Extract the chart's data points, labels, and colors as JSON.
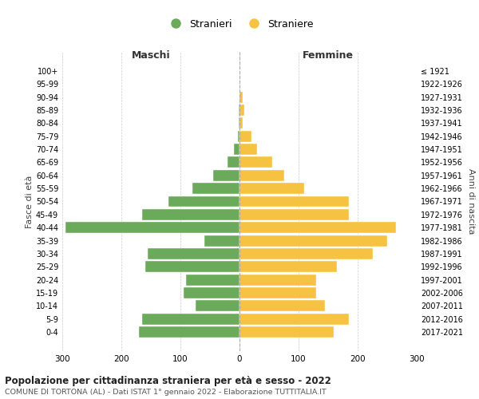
{
  "age_groups": [
    "0-4",
    "5-9",
    "10-14",
    "15-19",
    "20-24",
    "25-29",
    "30-34",
    "35-39",
    "40-44",
    "45-49",
    "50-54",
    "55-59",
    "60-64",
    "65-69",
    "70-74",
    "75-79",
    "80-84",
    "85-89",
    "90-94",
    "95-99",
    "100+"
  ],
  "birth_years": [
    "2017-2021",
    "2012-2016",
    "2007-2011",
    "2002-2006",
    "1997-2001",
    "1992-1996",
    "1987-1991",
    "1982-1986",
    "1977-1981",
    "1972-1976",
    "1967-1971",
    "1962-1966",
    "1957-1961",
    "1952-1956",
    "1947-1951",
    "1942-1946",
    "1937-1941",
    "1932-1936",
    "1927-1931",
    "1922-1926",
    "≤ 1921"
  ],
  "maschi": [
    170,
    165,
    75,
    95,
    90,
    160,
    155,
    60,
    295,
    165,
    120,
    80,
    45,
    20,
    10,
    3,
    2,
    2,
    0,
    0,
    0
  ],
  "femmine": [
    160,
    185,
    145,
    130,
    130,
    165,
    225,
    250,
    265,
    185,
    185,
    110,
    75,
    55,
    30,
    20,
    5,
    8,
    5,
    0,
    0
  ],
  "maschi_color": "#6aaa5a",
  "femmine_color": "#f5c242",
  "background_color": "#ffffff",
  "grid_color": "#cccccc",
  "title": "Popolazione per cittadinanza straniera per età e sesso - 2022",
  "subtitle": "COMUNE DI TORTONA (AL) - Dati ISTAT 1° gennaio 2022 - Elaborazione TUTTITALIA.IT",
  "xlabel_left": "Maschi",
  "xlabel_right": "Femmine",
  "ylabel_left": "Fasce di età",
  "ylabel_right": "Anni di nascita",
  "legend_maschi": "Stranieri",
  "legend_femmine": "Straniere",
  "xlim": 300
}
